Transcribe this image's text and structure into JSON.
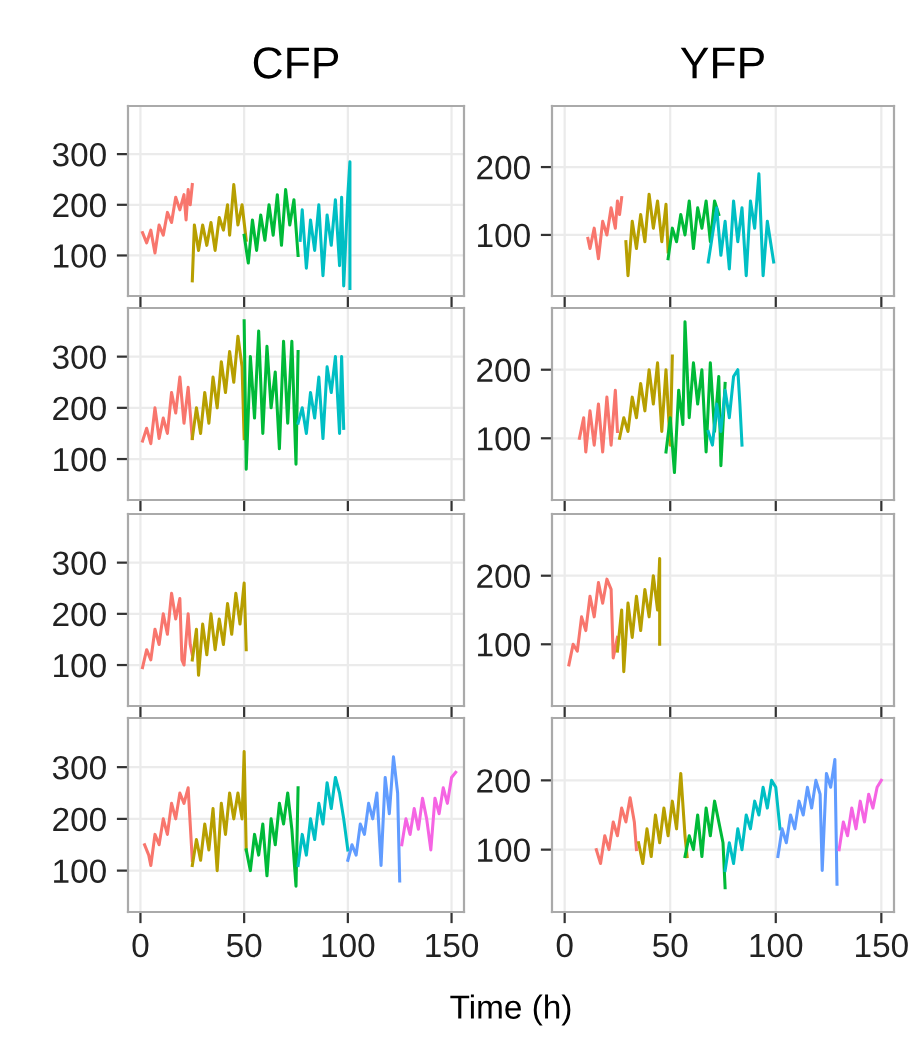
{
  "chart_data": [
    {
      "type": "line",
      "title": "CFP",
      "xlim": [
        -6,
        156
      ],
      "ylim": [
        20,
        395
      ],
      "xticks": [
        0,
        50,
        100,
        150
      ],
      "yticks": [
        100,
        200,
        300
      ],
      "tick_labels": "y",
      "grid": true,
      "series": [
        {
          "color": "#f8766d",
          "x": [
            1,
            3,
            5,
            7,
            9,
            11,
            13,
            15,
            17,
            19,
            21,
            22,
            23,
            24,
            25
          ],
          "values": [
            145,
            125,
            150,
            105,
            160,
            140,
            185,
            165,
            215,
            190,
            220,
            170,
            230,
            200,
            240
          ]
        },
        {
          "color": "#b79f00",
          "x": [
            25,
            26,
            28,
            30,
            32,
            34,
            36,
            38,
            40,
            42,
            43,
            45,
            47,
            49,
            51
          ],
          "values": [
            50,
            160,
            110,
            160,
            120,
            165,
            110,
            175,
            150,
            200,
            140,
            240,
            160,
            200,
            130
          ]
        },
        {
          "color": "#00ba38",
          "x": [
            50,
            52,
            54,
            56,
            58,
            60,
            62,
            64,
            66,
            68,
            70,
            72,
            74,
            76
          ],
          "values": [
            140,
            85,
            170,
            110,
            180,
            130,
            200,
            140,
            220,
            120,
            230,
            160,
            210,
            100
          ]
        },
        {
          "color": "#00bfc4",
          "x": [
            77,
            78,
            80,
            82,
            84,
            86,
            88,
            90,
            92,
            94,
            96,
            97,
            98,
            100,
            101,
            101
          ],
          "values": [
            130,
            190,
            75,
            170,
            110,
            200,
            60,
            180,
            120,
            210,
            80,
            215,
            40,
            220,
            285,
            35
          ]
        }
      ]
    },
    {
      "type": "line",
      "title": "YFP",
      "xlim": [
        -6,
        156
      ],
      "ylim": [
        10,
        290
      ],
      "xticks": [
        0,
        50,
        100,
        150
      ],
      "yticks": [
        100,
        200
      ],
      "tick_labels": "y",
      "grid": true,
      "series": [
        {
          "color": "#f8766d",
          "x": [
            11,
            12,
            14,
            16,
            18,
            20,
            22,
            24,
            25,
            26,
            27
          ],
          "values": [
            95,
            80,
            110,
            65,
            120,
            100,
            140,
            110,
            150,
            130,
            155
          ]
        },
        {
          "color": "#b79f00",
          "x": [
            29,
            30,
            32,
            34,
            36,
            38,
            40,
            42,
            44,
            46,
            48,
            49
          ],
          "values": [
            90,
            40,
            120,
            80,
            130,
            90,
            160,
            110,
            150,
            90,
            145,
            75
          ]
        },
        {
          "color": "#00ba38",
          "x": [
            49,
            51,
            53,
            55,
            57,
            59,
            61,
            63,
            65,
            67,
            69,
            71,
            73
          ],
          "values": [
            65,
            110,
            90,
            130,
            100,
            150,
            80,
            140,
            110,
            150,
            90,
            150,
            130
          ]
        },
        {
          "color": "#00bfc4",
          "x": [
            68,
            70,
            72,
            74,
            76,
            78,
            80,
            82,
            84,
            86,
            88,
            90,
            92,
            94,
            96,
            98,
            99
          ],
          "values": [
            60,
            100,
            140,
            70,
            120,
            50,
            150,
            90,
            140,
            40,
            150,
            110,
            190,
            40,
            120,
            80,
            60
          ]
        }
      ]
    },
    {
      "type": "line",
      "xlim": [
        -6,
        156
      ],
      "ylim": [
        20,
        395
      ],
      "xticks": [
        0,
        50,
        100,
        150
      ],
      "yticks": [
        100,
        200,
        300
      ],
      "tick_labels": "y",
      "grid": true,
      "series": [
        {
          "color": "#f8766d",
          "x": [
            1,
            3,
            5,
            7,
            9,
            11,
            13,
            15,
            17,
            19,
            21,
            23,
            25
          ],
          "values": [
            135,
            160,
            130,
            200,
            140,
            180,
            150,
            230,
            190,
            260,
            170,
            240,
            140
          ]
        },
        {
          "color": "#b79f00",
          "x": [
            25,
            27,
            29,
            31,
            33,
            35,
            37,
            39,
            41,
            43,
            45,
            47,
            49,
            50
          ],
          "values": [
            140,
            200,
            150,
            230,
            170,
            260,
            200,
            290,
            230,
            310,
            250,
            340,
            280,
            140
          ]
        },
        {
          "color": "#00ba38",
          "x": [
            50,
            51,
            53,
            55,
            57,
            59,
            61,
            63,
            65,
            67,
            69,
            71,
            73,
            75,
            76
          ],
          "values": [
            370,
            80,
            300,
            180,
            350,
            150,
            320,
            200,
            270,
            120,
            330,
            170,
            330,
            90,
            310
          ]
        },
        {
          "color": "#00bfc4",
          "x": [
            76,
            78,
            80,
            82,
            84,
            86,
            88,
            90,
            92,
            94,
            96,
            97,
            98
          ],
          "values": [
            170,
            200,
            150,
            230,
            180,
            260,
            140,
            280,
            230,
            300,
            150,
            300,
            160
          ]
        }
      ]
    },
    {
      "type": "line",
      "xlim": [
        -6,
        156
      ],
      "ylim": [
        10,
        290
      ],
      "xticks": [
        0,
        50,
        100,
        150
      ],
      "yticks": [
        100,
        200
      ],
      "tick_labels": "y",
      "grid": true,
      "series": [
        {
          "color": "#f8766d",
          "x": [
            7,
            9,
            10,
            12,
            14,
            16,
            18,
            20,
            22,
            24,
            25
          ],
          "values": [
            100,
            130,
            80,
            140,
            90,
            150,
            80,
            160,
            90,
            170,
            110
          ]
        },
        {
          "color": "#b79f00",
          "x": [
            26,
            28,
            30,
            32,
            34,
            36,
            38,
            40,
            42,
            44,
            46,
            48,
            50,
            51
          ],
          "values": [
            100,
            130,
            110,
            160,
            130,
            180,
            140,
            200,
            150,
            210,
            110,
            200,
            90,
            220
          ]
        },
        {
          "color": "#00ba38",
          "x": [
            48,
            50,
            52,
            54,
            56,
            57,
            59,
            61,
            63,
            65,
            67,
            69,
            71,
            73,
            74,
            76
          ],
          "values": [
            80,
            130,
            50,
            170,
            120,
            270,
            130,
            210,
            150,
            200,
            80,
            210,
            110,
            190,
            60,
            180
          ]
        },
        {
          "color": "#00bfc4",
          "x": [
            68,
            70,
            72,
            74,
            76,
            78,
            80,
            82,
            83,
            84
          ],
          "values": [
            110,
            90,
            150,
            110,
            170,
            130,
            190,
            200,
            150,
            90
          ]
        }
      ]
    },
    {
      "type": "line",
      "xlim": [
        -6,
        156
      ],
      "ylim": [
        20,
        395
      ],
      "xticks": [
        0,
        50,
        100,
        150
      ],
      "yticks": [
        100,
        200,
        300
      ],
      "tick_labels": "y",
      "grid": true,
      "series": [
        {
          "color": "#f8766d",
          "x": [
            1,
            3,
            5,
            7,
            9,
            11,
            13,
            15,
            17,
            19,
            20,
            21,
            23,
            24,
            25
          ],
          "values": [
            95,
            130,
            110,
            170,
            140,
            200,
            160,
            240,
            190,
            230,
            110,
            100,
            200,
            140,
            120
          ]
        },
        {
          "color": "#b79f00",
          "x": [
            25,
            27,
            28,
            30,
            32,
            34,
            36,
            38,
            40,
            42,
            44,
            46,
            48,
            50,
            51
          ],
          "values": [
            110,
            170,
            80,
            180,
            120,
            200,
            130,
            190,
            140,
            220,
            160,
            240,
            180,
            260,
            130
          ]
        }
      ]
    },
    {
      "type": "line",
      "xlim": [
        -6,
        156
      ],
      "ylim": [
        10,
        290
      ],
      "xticks": [
        0,
        50,
        100,
        150
      ],
      "yticks": [
        100,
        200
      ],
      "tick_labels": "y",
      "grid": true,
      "series": [
        {
          "color": "#f8766d",
          "x": [
            2,
            4,
            6,
            8,
            10,
            12,
            14,
            16,
            18,
            20,
            22,
            23,
            25
          ],
          "values": [
            70,
            100,
            90,
            140,
            120,
            170,
            140,
            190,
            160,
            195,
            180,
            80,
            110
          ]
        },
        {
          "color": "#b79f00",
          "x": [
            25,
            27,
            28,
            30,
            32,
            34,
            36,
            38,
            40,
            42,
            44,
            45,
            45
          ],
          "values": [
            90,
            150,
            60,
            160,
            110,
            170,
            120,
            180,
            140,
            200,
            150,
            225,
            100
          ]
        }
      ]
    },
    {
      "type": "line",
      "xlabel": "Time (h)",
      "xlim": [
        -6,
        156
      ],
      "ylim": [
        20,
        395
      ],
      "xticks": [
        0,
        50,
        100,
        150
      ],
      "yticks": [
        100,
        200,
        300
      ],
      "grid": true,
      "series": [
        {
          "color": "#f8766d",
          "x": [
            2,
            4,
            5,
            7,
            9,
            11,
            13,
            15,
            17,
            19,
            21,
            23,
            25
          ],
          "values": [
            150,
            130,
            110,
            170,
            150,
            200,
            170,
            230,
            200,
            250,
            230,
            260,
            120
          ]
        },
        {
          "color": "#b79f00",
          "x": [
            25,
            27,
            29,
            31,
            33,
            35,
            37,
            39,
            41,
            43,
            45,
            47,
            49,
            50,
            51
          ],
          "values": [
            110,
            160,
            120,
            190,
            140,
            220,
            100,
            230,
            170,
            250,
            200,
            250,
            200,
            330,
            140
          ]
        },
        {
          "color": "#00ba38",
          "x": [
            51,
            53,
            55,
            57,
            59,
            61,
            63,
            65,
            67,
            69,
            71,
            73,
            75,
            76
          ],
          "values": [
            140,
            100,
            170,
            130,
            190,
            90,
            200,
            150,
            230,
            190,
            250,
            180,
            70,
            260
          ]
        },
        {
          "color": "#00bfc4",
          "x": [
            76,
            78,
            80,
            82,
            84,
            86,
            88,
            90,
            92,
            94,
            96,
            98,
            100
          ],
          "values": [
            110,
            170,
            130,
            200,
            160,
            230,
            190,
            270,
            220,
            280,
            250,
            200,
            140
          ]
        },
        {
          "color": "#619cff",
          "x": [
            100,
            102,
            104,
            106,
            108,
            110,
            112,
            114,
            116,
            118,
            120,
            122,
            124,
            125
          ],
          "values": [
            120,
            150,
            130,
            190,
            170,
            230,
            200,
            250,
            110,
            280,
            210,
            320,
            250,
            80
          ]
        },
        {
          "color": "#f564e3",
          "x": [
            126,
            128,
            130,
            132,
            134,
            136,
            138,
            140,
            142,
            144,
            146,
            148,
            150,
            152
          ],
          "values": [
            150,
            200,
            170,
            220,
            180,
            240,
            200,
            140,
            240,
            210,
            260,
            230,
            280,
            290
          ]
        }
      ]
    },
    {
      "type": "line",
      "xlim": [
        -6,
        156
      ],
      "ylim": [
        10,
        290
      ],
      "xticks": [
        0,
        50,
        100,
        150
      ],
      "yticks": [
        100,
        200
      ],
      "grid": true,
      "series": [
        {
          "color": "#f8766d",
          "x": [
            15,
            17,
            19,
            21,
            23,
            25,
            27,
            29,
            31,
            33,
            34
          ],
          "values": [
            100,
            80,
            120,
            100,
            140,
            120,
            160,
            140,
            175,
            140,
            100
          ]
        },
        {
          "color": "#b79f00",
          "x": [
            35,
            37,
            39,
            41,
            43,
            45,
            47,
            49,
            51,
            53,
            55,
            57,
            58
          ],
          "values": [
            110,
            80,
            130,
            90,
            150,
            110,
            160,
            120,
            170,
            130,
            210,
            120,
            90
          ]
        },
        {
          "color": "#00ba38",
          "x": [
            57,
            59,
            61,
            63,
            65,
            67,
            69,
            71,
            73,
            75,
            76
          ],
          "values": [
            90,
            120,
            100,
            150,
            90,
            160,
            120,
            170,
            140,
            110,
            45
          ]
        },
        {
          "color": "#00bfc4",
          "x": [
            76,
            78,
            80,
            82,
            84,
            86,
            88,
            90,
            92,
            94,
            96,
            98,
            100,
            102
          ],
          "values": [
            70,
            110,
            80,
            130,
            100,
            150,
            130,
            170,
            150,
            190,
            160,
            200,
            190,
            130
          ]
        },
        {
          "color": "#619cff",
          "x": [
            101,
            103,
            105,
            107,
            109,
            111,
            113,
            115,
            117,
            119,
            121,
            122,
            124,
            126,
            128,
            129
          ],
          "values": [
            90,
            130,
            110,
            150,
            130,
            170,
            150,
            190,
            160,
            200,
            180,
            70,
            210,
            190,
            230,
            50
          ]
        },
        {
          "color": "#f564e3",
          "x": [
            130,
            132,
            134,
            136,
            138,
            140,
            142,
            144,
            146,
            148,
            150
          ],
          "values": [
            100,
            140,
            120,
            160,
            130,
            170,
            140,
            180,
            160,
            190,
            200
          ]
        }
      ]
    }
  ]
}
